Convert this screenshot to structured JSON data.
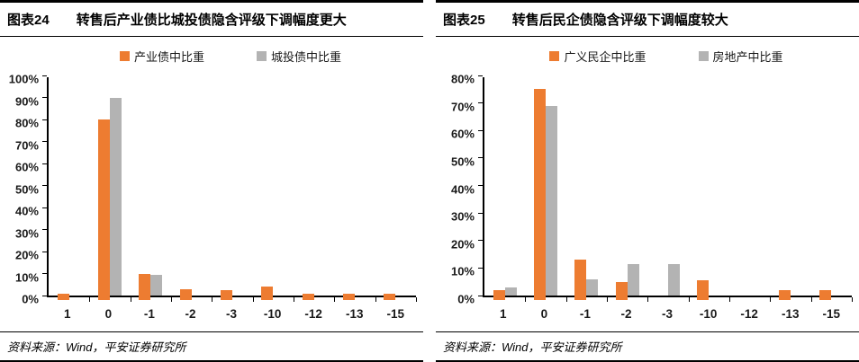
{
  "figures": [
    {
      "label": "图表24",
      "title": "转售后产业债比城投债隐含评级下调幅度更大",
      "source": "资料来源：Wind，平安证券研究所"
    },
    {
      "label": "图表25",
      "title": "转售后民企债隐含评级下调幅度较大",
      "source": "资料来源：Wind，平安证券研究所"
    }
  ],
  "colors": {
    "orange": "#ED7C31",
    "gray": "#B3B3B3",
    "axis": "#000000"
  },
  "chart_data": [
    {
      "type": "bar",
      "title": "图表24 转售后产业债比城投债隐含评级下调幅度更大",
      "categories": [
        "1",
        "0",
        "-1",
        "-2",
        "-3",
        "-10",
        "-12",
        "-13",
        "-15"
      ],
      "series": [
        {
          "name": "产业债中比重",
          "color": "#ED7C31",
          "values": [
            1,
            80,
            10,
            3,
            2.5,
            4,
            1,
            1,
            1
          ]
        },
        {
          "name": "城投债中比重",
          "color": "#B3B3B3",
          "values": [
            0,
            90,
            9.5,
            0,
            0,
            0,
            0,
            0,
            0
          ]
        }
      ],
      "xlabel": "",
      "ylabel": "",
      "ylim": [
        0,
        100
      ],
      "ytick_step": 10,
      "ytick_format": "percent",
      "grid": false,
      "legend_position": "top"
    },
    {
      "type": "bar",
      "title": "图表25 转售后民企债隐含评级下调幅度较大",
      "categories": [
        "1",
        "0",
        "-1",
        "-2",
        "-3",
        "-10",
        "-12",
        "-13",
        "-15"
      ],
      "series": [
        {
          "name": "广义民企中比重",
          "color": "#ED7C31",
          "values": [
            2,
            75,
            13,
            5,
            0,
            5.5,
            0,
            2,
            2
          ]
        },
        {
          "name": "房地产中比重",
          "color": "#B3B3B3",
          "values": [
            3,
            69,
            6,
            11.5,
            11.5,
            0,
            0,
            0,
            0
          ]
        }
      ],
      "xlabel": "",
      "ylabel": "",
      "ylim": [
        0,
        80
      ],
      "ytick_step": 10,
      "ytick_format": "percent",
      "grid": false,
      "legend_position": "top"
    }
  ]
}
